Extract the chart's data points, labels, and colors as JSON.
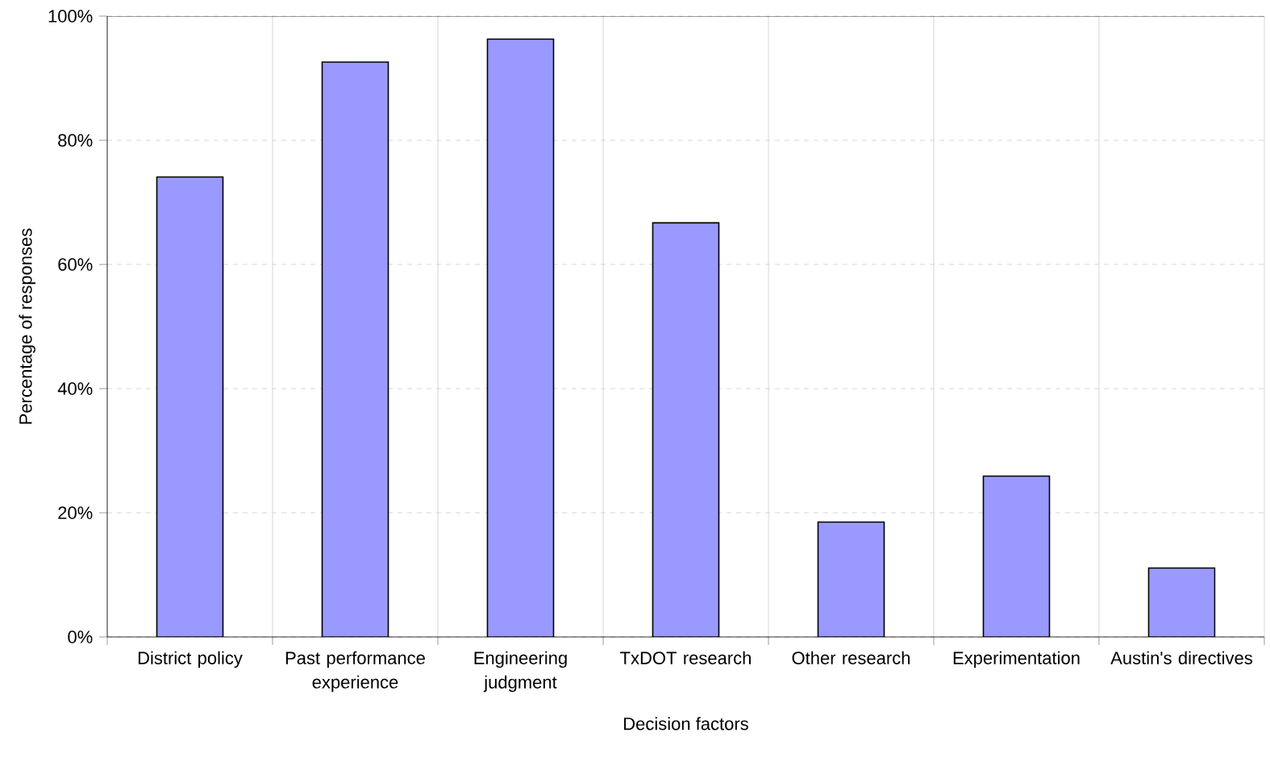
{
  "chart_data": {
    "type": "bar",
    "xlabel": "Decision factors",
    "ylabel": "Percentage of responses",
    "categories": [
      "District policy",
      "Past performance experience",
      "Engineering judgment",
      "TxDOT research",
      "Other research",
      "Experimentation",
      "Austin's directives"
    ],
    "values": [
      74.1,
      92.6,
      96.3,
      66.7,
      18.5,
      25.9,
      11.1
    ],
    "color": "#9999ff",
    "ylim": [
      0,
      100
    ],
    "yticks": [
      {
        "value": 0,
        "label": "0%"
      },
      {
        "value": 20,
        "label": "20%"
      },
      {
        "value": 40,
        "label": "40%"
      },
      {
        "value": 60,
        "label": "60%"
      },
      {
        "value": 80,
        "label": "80%"
      },
      {
        "value": 100,
        "label": "100%"
      }
    ],
    "grid": true
  }
}
